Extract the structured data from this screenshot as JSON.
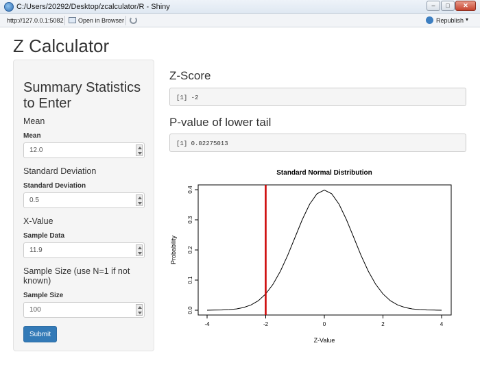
{
  "window": {
    "title": "C:/Users/20292/Desktop/zcalculator/R - Shiny",
    "controls": {
      "minimize": "–",
      "maximize": "□",
      "close": "✕"
    }
  },
  "toolbar": {
    "url": "http://127.0.0.1:5082",
    "open_in_browser": "Open in Browser",
    "republish": "Republish",
    "republish_menu": "▾"
  },
  "app": {
    "title": "Z Calculator"
  },
  "sidebar": {
    "heading": "Summary Statistics to Enter",
    "mean": {
      "section": "Mean",
      "label": "Mean",
      "value": "12.0"
    },
    "sd": {
      "section": "Standard Deviation",
      "label": "Standard Deviation",
      "value": "0.5"
    },
    "x": {
      "section": "X-Value",
      "label": "Sample Data",
      "value": "11.9"
    },
    "n": {
      "section": "Sample Size (use N=1 if not known)",
      "label": "Sample Size",
      "value": "100"
    },
    "submit_label": "Submit"
  },
  "main": {
    "zscore_heading": "Z-Score",
    "zscore_output": "[1] -2",
    "pvalue_heading": "P-value of lower tail",
    "pvalue_output": "[1] 0.02275013"
  },
  "chart_data": {
    "type": "line",
    "title": "Standard Normal Distribution",
    "xlabel": "Z-Value",
    "ylabel": "Probability",
    "xlim": [
      -4,
      4
    ],
    "ylim": [
      0,
      0.4
    ],
    "xticks": [
      -4,
      -2,
      0,
      2,
      4
    ],
    "yticks": [
      0.0,
      0.1,
      0.2,
      0.3,
      0.4
    ],
    "ytick_labels": [
      "0.0",
      "0.1",
      "0.2",
      "0.3",
      "0.4"
    ],
    "series": [
      {
        "x": [
          -4,
          -3.75,
          -3.5,
          -3.25,
          -3,
          -2.75,
          -2.5,
          -2.25,
          -2,
          -1.75,
          -1.5,
          -1.25,
          -1,
          -0.75,
          -0.5,
          -0.25,
          0,
          0.25,
          0.5,
          0.75,
          1,
          1.25,
          1.5,
          1.75,
          2,
          2.25,
          2.5,
          2.75,
          3,
          3.25,
          3.5,
          3.75,
          4
        ],
        "y": [
          0.0001,
          0.0004,
          0.0009,
          0.002,
          0.0044,
          0.0091,
          0.0175,
          0.0317,
          0.054,
          0.0863,
          0.1295,
          0.1826,
          0.242,
          0.3011,
          0.3521,
          0.3867,
          0.3989,
          0.3867,
          0.3521,
          0.3011,
          0.242,
          0.1826,
          0.1295,
          0.0863,
          0.054,
          0.0317,
          0.0175,
          0.0091,
          0.0044,
          0.002,
          0.0009,
          0.0004,
          0.0001
        ],
        "color": "#000000"
      }
    ],
    "vline": {
      "x": -2,
      "color": "#cc0000"
    },
    "grid": false
  }
}
